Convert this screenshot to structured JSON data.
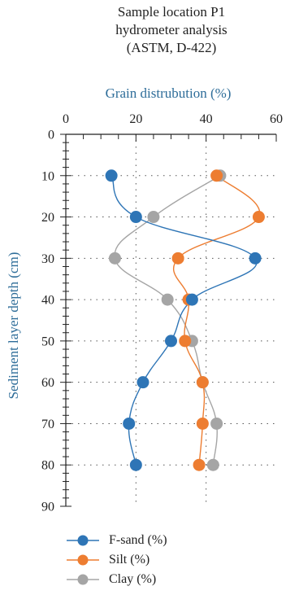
{
  "chart_data": {
    "type": "scatter",
    "title_lines": [
      "Sample location P1",
      "hydrometer analysis",
      "(ASTM, D-422)"
    ],
    "xlabel": "Grain distrubution (%)",
    "ylabel": "Sediment layer depth (cm)",
    "xlim": [
      0,
      60
    ],
    "ylim": [
      0,
      90
    ],
    "x_ticks": [
      "0",
      "20",
      "40",
      "60"
    ],
    "y_ticks": [
      "0",
      "10",
      "20",
      "30",
      "40",
      "50",
      "60",
      "70",
      "80",
      "90"
    ],
    "y_inverted": true,
    "x_axis_position": "top",
    "grid": "dotted",
    "legend_position": "bottom",
    "series": [
      {
        "name": "F-sand (%)",
        "color": "#2e75b6",
        "points": [
          [
            13,
            10
          ],
          [
            20,
            20
          ],
          [
            54,
            30
          ],
          [
            36,
            40
          ],
          [
            30,
            50
          ],
          [
            22,
            60
          ],
          [
            18,
            70
          ],
          [
            20,
            80
          ]
        ]
      },
      {
        "name": "Silt (%)",
        "color": "#ed7d31",
        "points": [
          [
            43,
            10
          ],
          [
            55,
            20
          ],
          [
            32,
            30
          ],
          [
            35,
            40
          ],
          [
            34,
            50
          ],
          [
            39,
            60
          ],
          [
            39,
            70
          ],
          [
            38,
            80
          ]
        ]
      },
      {
        "name": "Clay (%)",
        "color": "#a5a5a5",
        "points": [
          [
            44,
            10
          ],
          [
            25,
            20
          ],
          [
            14,
            30
          ],
          [
            29,
            40
          ],
          [
            36,
            50
          ],
          [
            39,
            60
          ],
          [
            43,
            70
          ],
          [
            42,
            80
          ]
        ]
      }
    ]
  }
}
